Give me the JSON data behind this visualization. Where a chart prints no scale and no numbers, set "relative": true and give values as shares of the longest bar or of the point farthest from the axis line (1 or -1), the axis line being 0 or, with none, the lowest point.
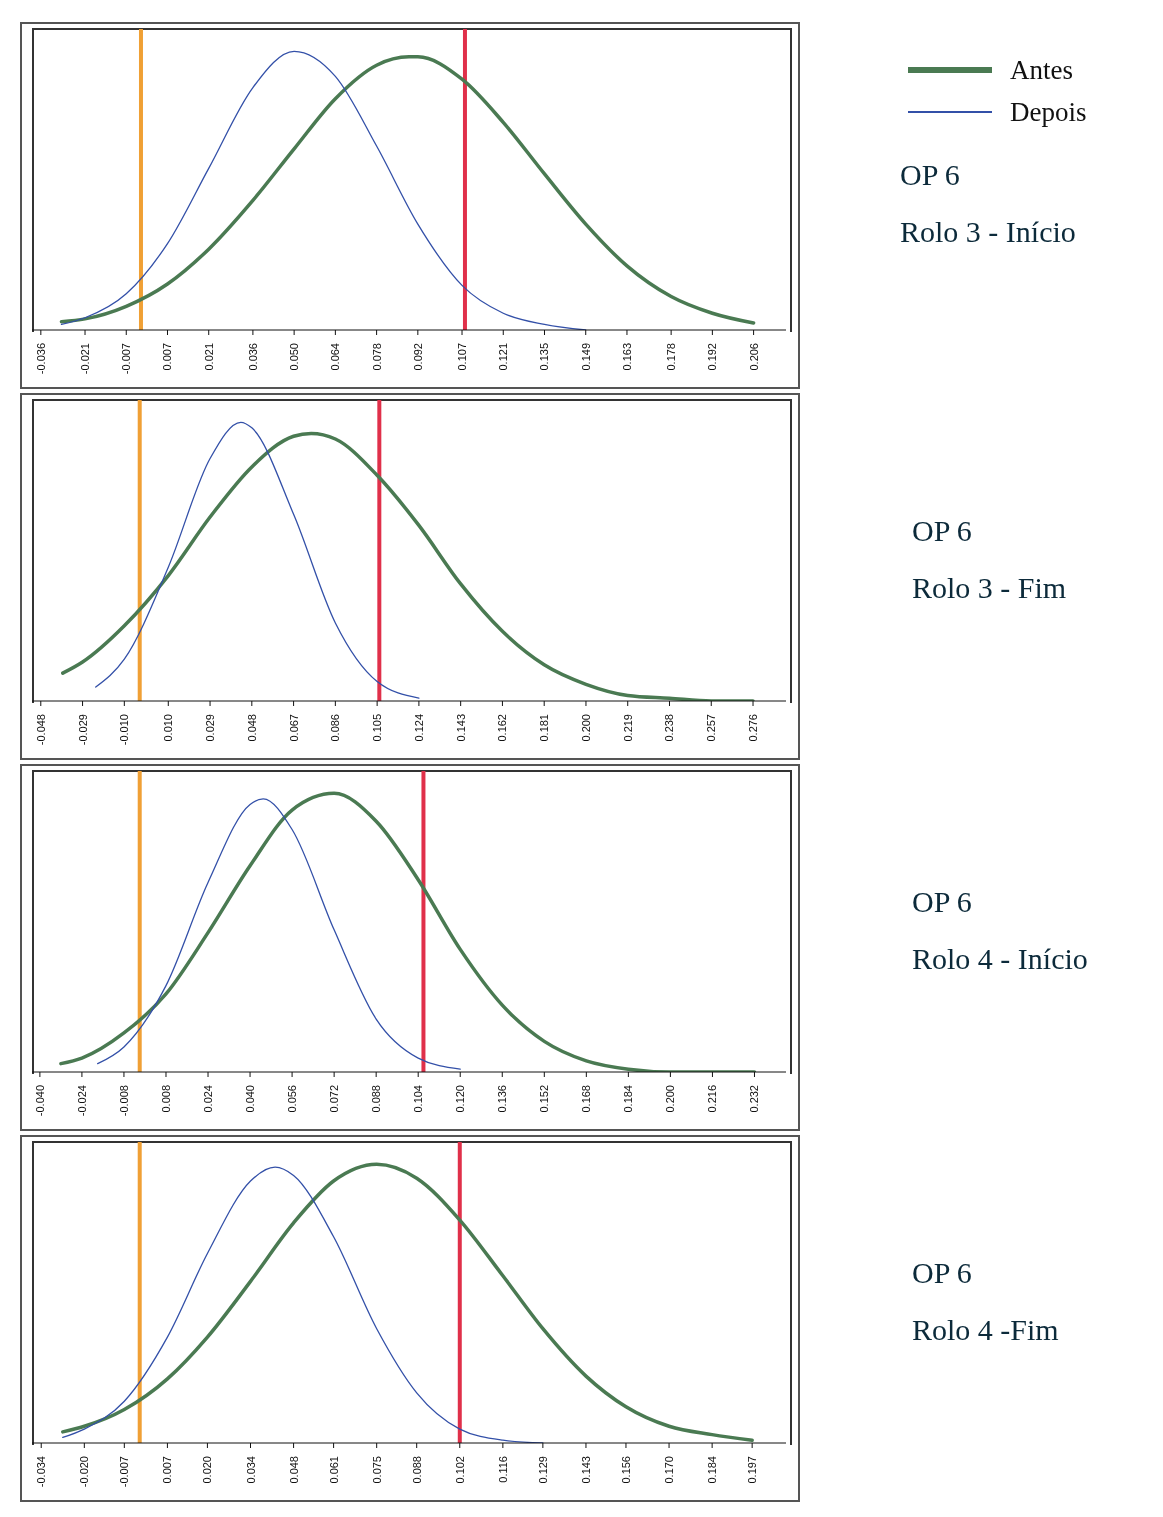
{
  "chart_data": [
    {
      "type": "line",
      "annotations": [
        "OP 6",
        "Rolo 3 - Início"
      ],
      "grid": false,
      "relative": true,
      "legend": "top right",
      "marker": "none",
      "line_style": "solid",
      "xlim": [
        -0.039,
        0.217
      ],
      "xticks": [
        {
          "value": -0.036,
          "label": "-0.036"
        },
        {
          "value": -0.021,
          "label": "-0.021"
        },
        {
          "value": -0.007,
          "label": "-0.007"
        },
        {
          "value": 0.007,
          "label": "0.007"
        },
        {
          "value": 0.021,
          "label": "0.021"
        },
        {
          "value": 0.036,
          "label": "0.036"
        },
        {
          "value": 0.05,
          "label": "0.050"
        },
        {
          "value": 0.064,
          "label": "0.064"
        },
        {
          "value": 0.078,
          "label": "0.078"
        },
        {
          "value": 0.092,
          "label": "0.092"
        },
        {
          "value": 0.107,
          "label": "0.107"
        },
        {
          "value": 0.121,
          "label": "0.121"
        },
        {
          "value": 0.135,
          "label": "0.135"
        },
        {
          "value": 0.149,
          "label": "0.149"
        },
        {
          "value": 0.163,
          "label": "0.163"
        },
        {
          "value": 0.178,
          "label": "0.178"
        },
        {
          "value": 0.192,
          "label": "0.192"
        },
        {
          "value": 0.206,
          "label": "0.206"
        }
      ],
      "series": [
        {
          "name": "Antes",
          "color": "#4a7a52",
          "x": [
            -0.029,
            -0.021,
            -0.007,
            0.007,
            0.021,
            0.036,
            0.05,
            0.064,
            0.078,
            0.089,
            0.092,
            0.107,
            0.121,
            0.135,
            0.149,
            0.163,
            0.178,
            0.192,
            0.206
          ],
          "values": [
            0.03,
            0.04,
            0.085,
            0.165,
            0.29,
            0.465,
            0.65,
            0.83,
            0.95,
            0.98,
            0.98,
            0.9,
            0.745,
            0.56,
            0.38,
            0.23,
            0.12,
            0.06,
            0.025
          ]
        },
        {
          "name": "Depois",
          "color": "#3350a8",
          "x": [
            -0.029,
            -0.021,
            -0.007,
            0.007,
            0.021,
            0.036,
            0.05,
            0.064,
            0.078,
            0.092,
            0.107,
            0.121,
            0.135,
            0.149
          ],
          "values": [
            0.02,
            0.044,
            0.13,
            0.31,
            0.58,
            0.87,
            1,
            0.91,
            0.66,
            0.38,
            0.16,
            0.06,
            0.02,
            0
          ]
        }
      ],
      "ref_lines": [
        {
          "axis": "x",
          "value": -0.002,
          "color": "#f0a035"
        },
        {
          "axis": "x",
          "value": 0.108,
          "color": "#e0304a"
        }
      ]
    },
    {
      "type": "line",
      "annotations": [
        "OP 6",
        "Rolo 3 - Fim"
      ],
      "grid": false,
      "relative": true,
      "legend": false,
      "marker": "none",
      "line_style": "solid",
      "xlim": [
        -0.052,
        0.291
      ],
      "xticks": [
        {
          "value": -0.048,
          "label": "-0.048"
        },
        {
          "value": -0.029,
          "label": "-0.029"
        },
        {
          "value": -0.01,
          "label": "-0.010"
        },
        {
          "value": 0.01,
          "label": "0.010"
        },
        {
          "value": 0.029,
          "label": "0.029"
        },
        {
          "value": 0.048,
          "label": "0.048"
        },
        {
          "value": 0.067,
          "label": "0.067"
        },
        {
          "value": 0.086,
          "label": "0.086"
        },
        {
          "value": 0.105,
          "label": "0.105"
        },
        {
          "value": 0.124,
          "label": "0.124"
        },
        {
          "value": 0.143,
          "label": "0.143"
        },
        {
          "value": 0.162,
          "label": "0.162"
        },
        {
          "value": 0.181,
          "label": "0.181"
        },
        {
          "value": 0.2,
          "label": "0.200"
        },
        {
          "value": 0.219,
          "label": "0.219"
        },
        {
          "value": 0.238,
          "label": "0.238"
        },
        {
          "value": 0.257,
          "label": "0.257"
        },
        {
          "value": 0.276,
          "label": "0.276"
        }
      ],
      "series": [
        {
          "color": "#4a7a52",
          "x": [
            -0.038,
            -0.029,
            -0.01,
            0.01,
            0.029,
            0.048,
            0.067,
            0.075,
            0.086,
            0.105,
            0.124,
            0.143,
            0.162,
            0.181,
            0.2,
            0.219,
            0.238,
            0.257,
            0.276
          ],
          "values": [
            0.1,
            0.14,
            0.27,
            0.45,
            0.66,
            0.84,
            0.95,
            0.96,
            0.94,
            0.81,
            0.63,
            0.42,
            0.25,
            0.13,
            0.06,
            0.02,
            0.01,
            0,
            0
          ]
        },
        {
          "color": "#3350a8",
          "x": [
            -0.023,
            -0.01,
            0.01,
            0.029,
            0.043,
            0.048,
            0.067,
            0.086,
            0.105,
            0.124
          ],
          "values": [
            0.05,
            0.15,
            0.48,
            0.87,
            1,
            0.98,
            0.67,
            0.28,
            0.07,
            0.01
          ]
        }
      ],
      "ref_lines": [
        {
          "axis": "x",
          "value": -0.003,
          "color": "#f0a035"
        },
        {
          "axis": "x",
          "value": 0.106,
          "color": "#e0304a"
        }
      ]
    },
    {
      "type": "line",
      "annotations": [
        "OP 6",
        "Rolo 4 - Início"
      ],
      "grid": false,
      "relative": true,
      "legend": false,
      "marker": "none",
      "line_style": "solid",
      "xlim": [
        -0.043,
        0.244
      ],
      "xticks": [
        {
          "value": -0.04,
          "label": "-0.040"
        },
        {
          "value": -0.024,
          "label": "-0.024"
        },
        {
          "value": -0.008,
          "label": "-0.008"
        },
        {
          "value": 0.008,
          "label": "0.008"
        },
        {
          "value": 0.024,
          "label": "0.024"
        },
        {
          "value": 0.04,
          "label": "0.040"
        },
        {
          "value": 0.056,
          "label": "0.056"
        },
        {
          "value": 0.072,
          "label": "0.072"
        },
        {
          "value": 0.088,
          "label": "0.088"
        },
        {
          "value": 0.104,
          "label": "0.104"
        },
        {
          "value": 0.12,
          "label": "0.120"
        },
        {
          "value": 0.136,
          "label": "0.136"
        },
        {
          "value": 0.152,
          "label": "0.152"
        },
        {
          "value": 0.168,
          "label": "0.168"
        },
        {
          "value": 0.184,
          "label": "0.184"
        },
        {
          "value": 0.2,
          "label": "0.200"
        },
        {
          "value": 0.216,
          "label": "0.216"
        },
        {
          "value": 0.232,
          "label": "0.232"
        }
      ],
      "series": [
        {
          "color": "#4a7a52",
          "x": [
            -0.032,
            -0.024,
            -0.008,
            0.008,
            0.024,
            0.04,
            0.056,
            0.072,
            0.088,
            0.104,
            0.12,
            0.136,
            0.152,
            0.168,
            0.184,
            0.2,
            0.216,
            0.232
          ],
          "values": [
            0.03,
            0.05,
            0.14,
            0.28,
            0.5,
            0.74,
            0.94,
            1,
            0.9,
            0.69,
            0.44,
            0.24,
            0.11,
            0.04,
            0.01,
            0,
            0,
            0
          ]
        },
        {
          "color": "#3350a8",
          "x": [
            -0.018,
            -0.008,
            0.008,
            0.024,
            0.04,
            0.045,
            0.056,
            0.072,
            0.088,
            0.104,
            0.12
          ],
          "values": [
            0.03,
            0.09,
            0.31,
            0.68,
            0.96,
            0.98,
            0.87,
            0.51,
            0.19,
            0.05,
            0.01
          ]
        }
      ],
      "ref_lines": [
        {
          "axis": "x",
          "value": -0.002,
          "color": "#f0a035"
        },
        {
          "axis": "x",
          "value": 0.106,
          "color": "#e0304a"
        }
      ]
    },
    {
      "type": "line",
      "annotations": [
        "OP 6",
        "Rolo 4 -Fim"
      ],
      "grid": false,
      "relative": true,
      "legend": false,
      "marker": "none",
      "line_style": "solid",
      "xlim": [
        -0.037,
        0.208
      ],
      "xticks": [
        {
          "value": -0.034,
          "label": "-0.034"
        },
        {
          "value": -0.02,
          "label": "-0.020"
        },
        {
          "value": -0.007,
          "label": "-0.007"
        },
        {
          "value": 0.007,
          "label": "0.007"
        },
        {
          "value": 0.02,
          "label": "0.020"
        },
        {
          "value": 0.034,
          "label": "0.034"
        },
        {
          "value": 0.048,
          "label": "0.048"
        },
        {
          "value": 0.061,
          "label": "0.061"
        },
        {
          "value": 0.075,
          "label": "0.075"
        },
        {
          "value": 0.088,
          "label": "0.088"
        },
        {
          "value": 0.102,
          "label": "0.102"
        },
        {
          "value": 0.116,
          "label": "0.116"
        },
        {
          "value": 0.129,
          "label": "0.129"
        },
        {
          "value": 0.143,
          "label": "0.143"
        },
        {
          "value": 0.156,
          "label": "0.156"
        },
        {
          "value": 0.17,
          "label": "0.170"
        },
        {
          "value": 0.184,
          "label": "0.184"
        },
        {
          "value": 0.197,
          "label": "0.197"
        }
      ],
      "series": [
        {
          "color": "#4a7a52",
          "x": [
            -0.027,
            -0.02,
            -0.007,
            0.007,
            0.02,
            0.034,
            0.048,
            0.061,
            0.075,
            0.088,
            0.102,
            0.116,
            0.129,
            0.143,
            0.156,
            0.17,
            0.184,
            0.197
          ],
          "values": [
            0.04,
            0.06,
            0.12,
            0.23,
            0.38,
            0.58,
            0.79,
            0.94,
            1,
            0.95,
            0.8,
            0.6,
            0.41,
            0.24,
            0.13,
            0.06,
            0.03,
            0.01
          ]
        },
        {
          "color": "#3350a8",
          "x": [
            -0.027,
            -0.02,
            -0.007,
            0.007,
            0.02,
            0.034,
            0.042,
            0.048,
            0.061,
            0.075,
            0.088,
            0.102,
            0.116,
            0.129
          ],
          "values": [
            0.02,
            0.05,
            0.15,
            0.38,
            0.68,
            0.94,
            0.99,
            0.96,
            0.74,
            0.41,
            0.18,
            0.05,
            0.01,
            0
          ]
        }
      ],
      "ref_lines": [
        {
          "axis": "x",
          "value": -0.002,
          "color": "#f0a035"
        },
        {
          "axis": "x",
          "value": 0.102,
          "color": "#e0304a"
        }
      ]
    }
  ]
}
